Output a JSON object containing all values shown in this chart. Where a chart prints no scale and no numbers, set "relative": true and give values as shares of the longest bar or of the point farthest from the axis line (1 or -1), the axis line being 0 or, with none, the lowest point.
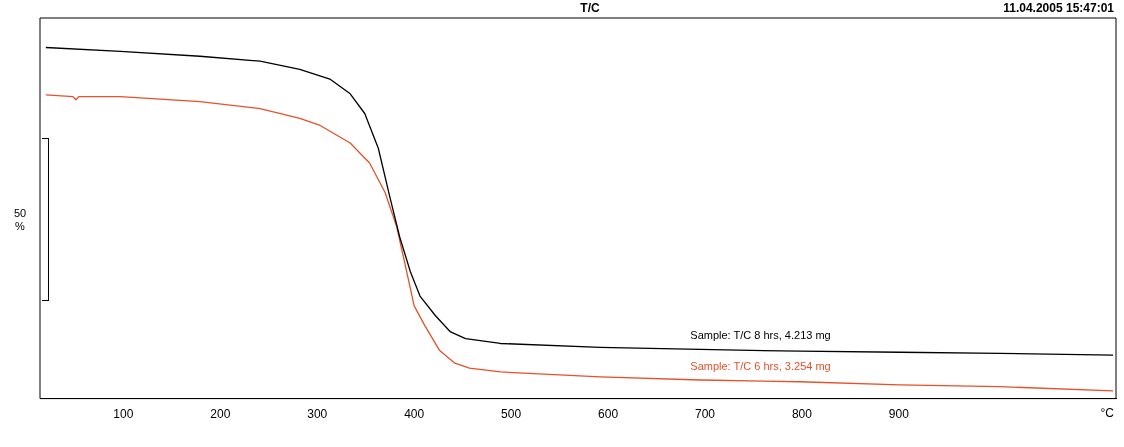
{
  "chart_data": {
    "type": "line",
    "title": "T/C",
    "subtitle": "11.04.2005 15:47:01",
    "xlabel": "°C",
    "relative": true,
    "legend": false,
    "grid": false,
    "marker": "none",
    "line_style": "solid",
    "xlim": [
      14,
      1124
    ],
    "xticks": [
      100,
      200,
      300,
      400,
      500,
      600,
      700,
      800,
      900
    ],
    "annotations": [
      "50 %"
    ],
    "series": [
      {
        "name": "Sample: T/C 8 hrs, 4.213 mg",
        "color": "#000000",
        "x": [
          20,
          97,
          179,
          241,
          282,
          313,
          334,
          349,
          363,
          375,
          385,
          396,
          406,
          422,
          437,
          453,
          489,
          592,
          695,
          798,
          901,
          1004,
          1121
        ],
        "values": [
          1,
          0.989,
          0.975,
          0.961,
          0.938,
          0.91,
          0.868,
          0.812,
          0.713,
          0.573,
          0.461,
          0.362,
          0.292,
          0.236,
          0.191,
          0.171,
          0.157,
          0.146,
          0.14,
          0.135,
          0.132,
          0.129,
          0.124
        ]
      },
      {
        "name": "Sample: T/C 6 hrs, 3.254 mg",
        "color": "#e8502a",
        "x": [
          20,
          48,
          51,
          54,
          97,
          179,
          241,
          282,
          303,
          334,
          354,
          370,
          382,
          390,
          400,
          411,
          426,
          442,
          457,
          489,
          592,
          695,
          798,
          901,
          1004,
          1121
        ],
        "values": [
          0.865,
          0.86,
          0.851,
          0.86,
          0.86,
          0.846,
          0.826,
          0.798,
          0.778,
          0.728,
          0.671,
          0.587,
          0.489,
          0.39,
          0.264,
          0.208,
          0.138,
          0.101,
          0.087,
          0.076,
          0.062,
          0.053,
          0.048,
          0.039,
          0.034,
          0.022
        ]
      }
    ]
  }
}
